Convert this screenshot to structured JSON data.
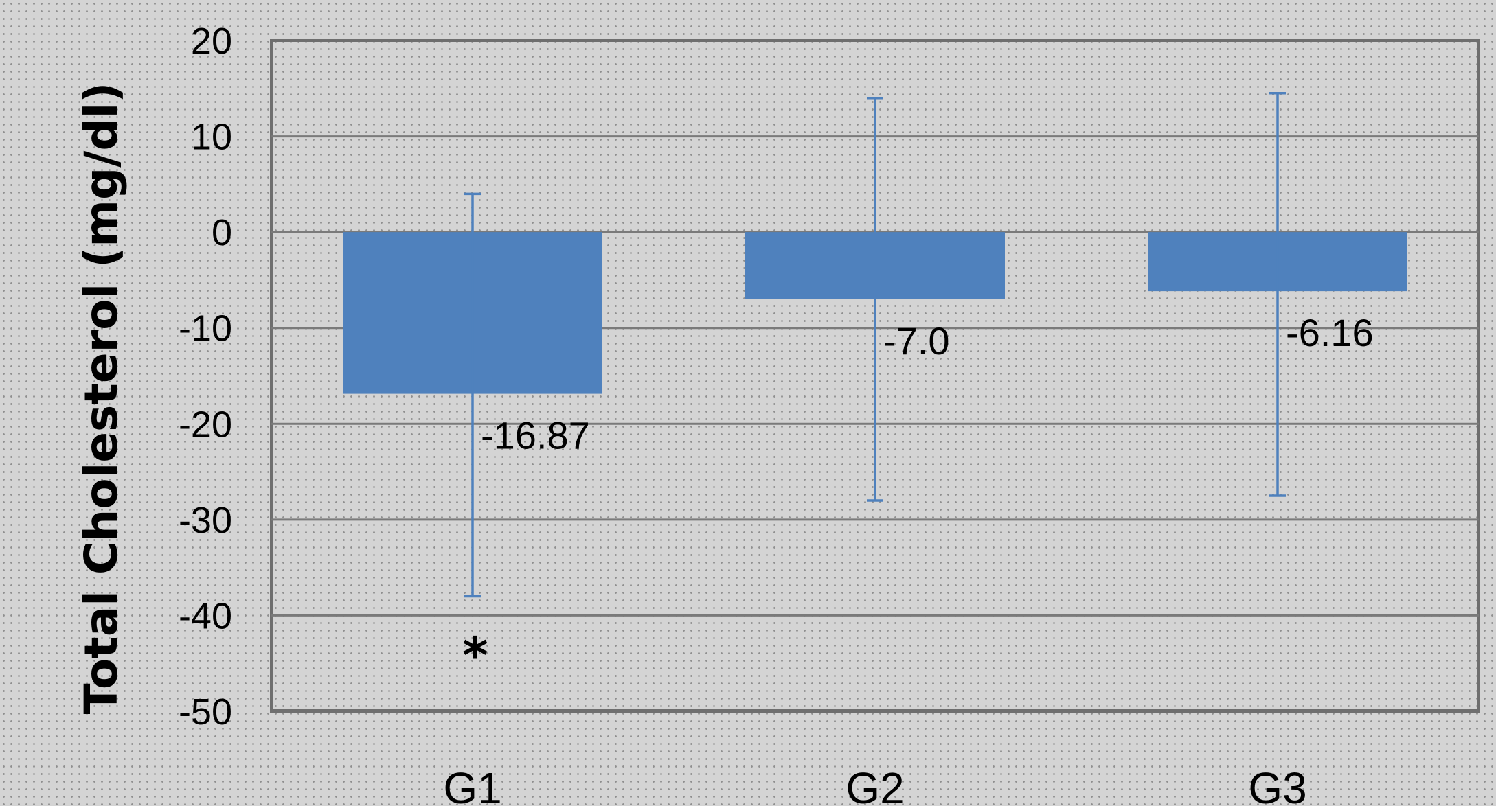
{
  "chart_data": {
    "type": "bar",
    "title": "",
    "xlabel": "",
    "ylabel": "Total Cholesterol (mg/dl)",
    "ylim": [
      -50,
      20
    ],
    "yticks": [
      20,
      10,
      0,
      -10,
      -20,
      -30,
      -40,
      -50
    ],
    "grid": true,
    "categories": [
      "G1",
      "G2",
      "G3"
    ],
    "values": [
      -16.87,
      -7.0,
      -6.16
    ],
    "value_labels": [
      "-16.87",
      "-7.0",
      "-6.16"
    ],
    "error_low": [
      -38,
      -28,
      -27.5
    ],
    "error_high": [
      4,
      14,
      14.5
    ],
    "annotations": [
      {
        "category": "G1",
        "text": "*",
        "y": -43.5
      }
    ],
    "colors": {
      "bar": "#4f81bd",
      "error_bar": "#4f81bd",
      "grid": "#7a7a7a",
      "axis": "#6e6e6e"
    }
  }
}
